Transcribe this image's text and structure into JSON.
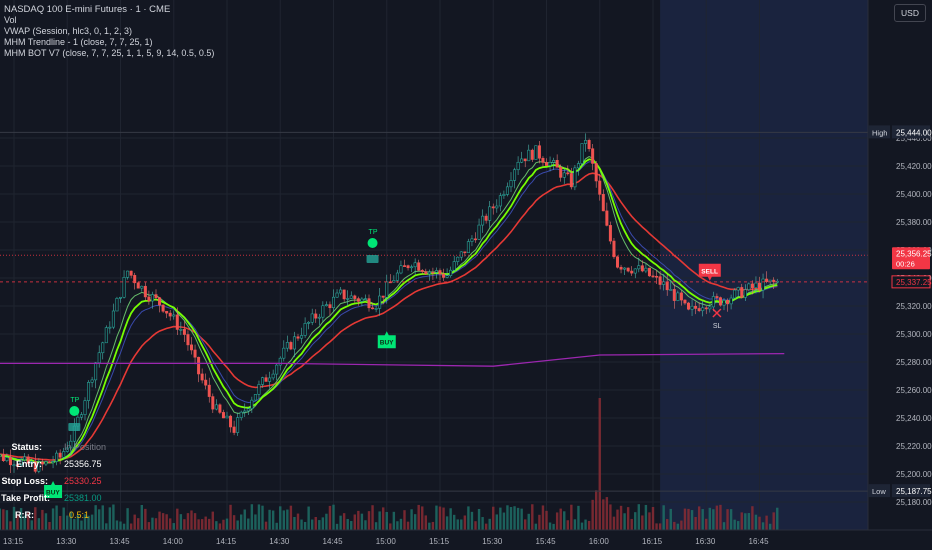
{
  "legend": {
    "symbol": "NASDAQ 100 E-mini Futures · 1 · CME",
    "lines": [
      "Vol",
      "VWAP (Session, hlc3, 0, 1, 2, 3)",
      "MHM Trendline - 1 (close, 7, 7, 25, 1)",
      "MHM BOT V7 (close, 7, 7, 25, 1, 1, 5, 9, 14, 0.5, 0.5)"
    ]
  },
  "currency": "USD",
  "info_table": [
    {
      "label": "Status:",
      "value": "In Position",
      "color": "#787b86"
    },
    {
      "label": "Entry:",
      "value": "25356.75",
      "color": "#ffffff"
    },
    {
      "label": "Stop Loss:",
      "value": "25330.25",
      "color": "#f23645"
    },
    {
      "label": "Take Profit:",
      "value": "25381.00",
      "color": "#089981"
    },
    {
      "label": "R:R:",
      "value": "0.5:1",
      "color": "#f0b90b"
    }
  ],
  "chart_data": {
    "type": "candlestick",
    "title": "NASDAQ 100 E-mini Futures · 1 · CME",
    "y_axis": {
      "ticks": [
        25180,
        25200,
        25220,
        25240,
        25260,
        25280,
        25300,
        25320,
        25340,
        25360,
        25380,
        25400,
        25420,
        25440
      ],
      "range": [
        25172,
        25462
      ],
      "position": "right"
    },
    "x_axis": {
      "ticks": [
        "13:15",
        "13:30",
        "13:45",
        "14:00",
        "14:15",
        "14:30",
        "14:45",
        "15:00",
        "15:15",
        "15:30",
        "15:45",
        "16:00",
        "16:15",
        "16:30",
        "16:45"
      ]
    },
    "price_path": [
      {
        "t": "13:07",
        "v": 25215
      },
      {
        "t": "13:15",
        "v": 25210
      },
      {
        "t": "13:22",
        "v": 25205
      },
      {
        "t": "13:28",
        "v": 25212
      },
      {
        "t": "13:32",
        "v": 25230
      },
      {
        "t": "13:38",
        "v": 25280
      },
      {
        "t": "13:43",
        "v": 25315
      },
      {
        "t": "13:47",
        "v": 25345
      },
      {
        "t": "13:52",
        "v": 25330
      },
      {
        "t": "13:57",
        "v": 25320
      },
      {
        "t": "14:03",
        "v": 25300
      },
      {
        "t": "14:07",
        "v": 25272
      },
      {
        "t": "14:12",
        "v": 25245
      },
      {
        "t": "14:17",
        "v": 25232
      },
      {
        "t": "14:22",
        "v": 25255
      },
      {
        "t": "14:27",
        "v": 25272
      },
      {
        "t": "14:32",
        "v": 25290
      },
      {
        "t": "14:37",
        "v": 25305
      },
      {
        "t": "14:42",
        "v": 25318
      },
      {
        "t": "14:47",
        "v": 25328
      },
      {
        "t": "14:52",
        "v": 25325
      },
      {
        "t": "14:57",
        "v": 25322
      },
      {
        "t": "15:02",
        "v": 25340
      },
      {
        "t": "15:07",
        "v": 25352
      },
      {
        "t": "15:12",
        "v": 25345
      },
      {
        "t": "15:17",
        "v": 25342
      },
      {
        "t": "15:22",
        "v": 25360
      },
      {
        "t": "15:27",
        "v": 25380
      },
      {
        "t": "15:32",
        "v": 25398
      },
      {
        "t": "15:37",
        "v": 25425
      },
      {
        "t": "15:42",
        "v": 25430
      },
      {
        "t": "15:47",
        "v": 25420
      },
      {
        "t": "15:52",
        "v": 25408
      },
      {
        "t": "15:56",
        "v": 25440
      },
      {
        "t": "15:58",
        "v": 25420
      },
      {
        "t": "16:02",
        "v": 25375
      },
      {
        "t": "16:05",
        "v": 25350
      },
      {
        "t": "16:12",
        "v": 25345
      },
      {
        "t": "16:18",
        "v": 25335
      },
      {
        "t": "16:22",
        "v": 25325
      },
      {
        "t": "16:25",
        "v": 25315
      },
      {
        "t": "16:29",
        "v": 25322
      },
      {
        "t": "16:34",
        "v": 25324
      },
      {
        "t": "16:40",
        "v": 25330
      },
      {
        "t": "16:45",
        "v": 25335
      },
      {
        "t": "16:50",
        "v": 25337
      }
    ],
    "series": [
      {
        "name": "VWAP",
        "color": "#9c27b0",
        "values": [
          {
            "t": "13:07",
            "v": 25279
          },
          {
            "t": "14:30",
            "v": 25279
          },
          {
            "t": "15:30",
            "v": 25277
          },
          {
            "t": "16:00",
            "v": 25285
          },
          {
            "t": "16:52",
            "v": 25286
          }
        ]
      }
    ],
    "price_lines": [
      {
        "label": "High",
        "value": "25,444.00",
        "v": 25444,
        "style": "solid"
      },
      {
        "label": "Low",
        "value": "25,187.75",
        "v": 25187.75,
        "style": "solid"
      },
      {
        "label": "",
        "value": "25,356.25",
        "sub": "00:26",
        "v": 25356.25,
        "style": "dotted",
        "color": "#f23645"
      },
      {
        "label": "",
        "value": "25,337.25",
        "v": 25337.25,
        "style": "dashed",
        "color": "#f23645"
      }
    ],
    "markers": [
      {
        "label": "TP",
        "t": "13:32",
        "v": 25245,
        "color": "#00e676"
      },
      {
        "label": "TP",
        "t": "14:56",
        "v": 25365,
        "color": "#00e676"
      },
      {
        "label": "BUY",
        "t": "15:00",
        "v": 25302,
        "color": "#00e676"
      },
      {
        "label": "BUY",
        "t": "13:26",
        "v": 25195,
        "color": "#00e676"
      },
      {
        "label": "SELL",
        "t": "16:31",
        "v": 25338,
        "color": "#f23645"
      },
      {
        "label": "SL",
        "t": "16:33",
        "v": 25315,
        "color": "#f23645"
      }
    ],
    "volume_spike": {
      "t": "16:00"
    }
  }
}
